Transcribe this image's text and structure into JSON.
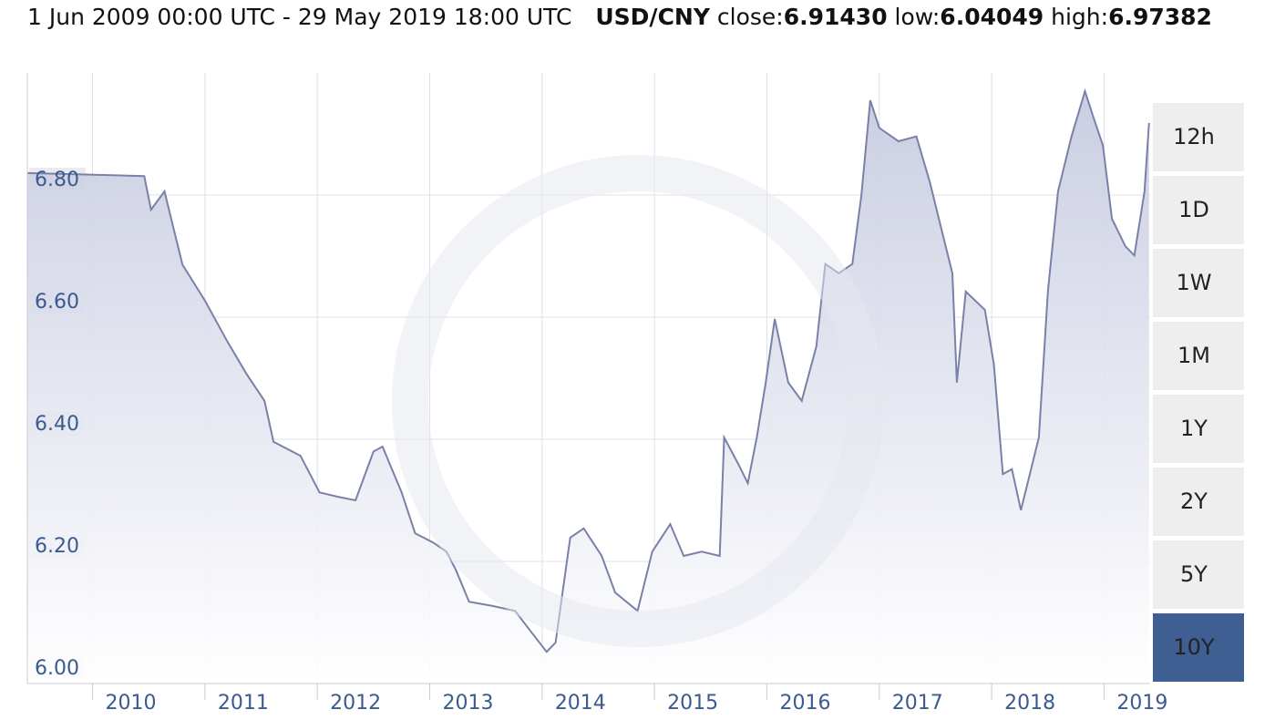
{
  "header": {
    "range": "1 Jun 2009 00:00 UTC - 29 May 2019 18:00 UTC",
    "pair": "USD/CNY",
    "stats": [
      {
        "label": "close:",
        "value": "6.91430"
      },
      {
        "label": "low:",
        "value": "6.04049"
      },
      {
        "label": "high:",
        "value": "6.97382"
      }
    ]
  },
  "chart_data": {
    "type": "line",
    "color": "#7a80a8",
    "fill": "#c5c9df",
    "grid": true,
    "x": [
      2009.42,
      2010.46,
      2010.52,
      2010.64,
      2010.8,
      2011.0,
      2011.2,
      2011.37,
      2011.53,
      2011.61,
      2011.85,
      2012.02,
      2012.18,
      2012.34,
      2012.5,
      2012.58,
      2012.75,
      2012.87,
      2013.03,
      2013.15,
      2013.23,
      2013.35,
      2013.56,
      2013.76,
      2013.88,
      2014.04,
      2014.12,
      2014.25,
      2014.37,
      2014.53,
      2014.65,
      2014.85,
      2014.98,
      2015.14,
      2015.26,
      2015.42,
      2015.58,
      2015.62,
      2015.75,
      2015.83,
      2015.91,
      2015.99,
      2016.07,
      2016.19,
      2016.31,
      2016.44,
      2016.52,
      2016.64,
      2016.76,
      2016.84,
      2016.92,
      2017.0,
      2017.17,
      2017.33,
      2017.45,
      2017.53,
      2017.65,
      2017.69,
      2017.77,
      2017.94,
      2018.02,
      2018.1,
      2018.18,
      2018.26,
      2018.34,
      2018.42,
      2018.5,
      2018.59,
      2018.71,
      2018.83,
      2018.91,
      2018.99,
      2019.07,
      2019.19,
      2019.27,
      2019.36,
      2019.4
    ],
    "values": [
      6.836,
      6.831,
      6.776,
      6.806,
      6.686,
      6.627,
      6.56,
      6.507,
      6.463,
      6.396,
      6.373,
      6.313,
      6.306,
      6.3,
      6.38,
      6.388,
      6.313,
      6.246,
      6.231,
      6.216,
      6.187,
      6.134,
      6.127,
      6.119,
      6.09,
      6.052,
      6.067,
      6.239,
      6.254,
      6.209,
      6.149,
      6.119,
      6.216,
      6.261,
      6.209,
      6.216,
      6.209,
      6.403,
      6.358,
      6.328,
      6.403,
      6.493,
      6.597,
      6.493,
      6.463,
      6.552,
      6.687,
      6.672,
      6.687,
      6.799,
      6.955,
      6.91,
      6.888,
      6.896,
      6.821,
      6.761,
      6.672,
      6.493,
      6.642,
      6.612,
      6.522,
      6.343,
      6.351,
      6.284,
      6.343,
      6.403,
      6.642,
      6.806,
      6.896,
      6.97,
      6.925,
      6.881,
      6.761,
      6.716,
      6.701,
      6.806,
      6.918
    ],
    "xlim": [
      2009.42,
      2019.41
    ],
    "xticks": [
      2010,
      2011,
      2012,
      2013,
      2014,
      2015,
      2016,
      2017,
      2018,
      2019
    ],
    "ylim": [
      6,
      7
    ],
    "yticks": [
      {
        "value": 6,
        "label": "6.00"
      },
      {
        "value": 6.2,
        "label": "6.20"
      },
      {
        "value": 6.4,
        "label": "6.40"
      },
      {
        "value": 6.6,
        "label": "6.60"
      },
      {
        "value": 6.8,
        "label": "6.80"
      }
    ]
  },
  "range_buttons": {
    "labels": [
      "12h",
      "1D",
      "1W",
      "1M",
      "1Y",
      "2Y",
      "5Y",
      "10Y"
    ],
    "selected": 7
  }
}
